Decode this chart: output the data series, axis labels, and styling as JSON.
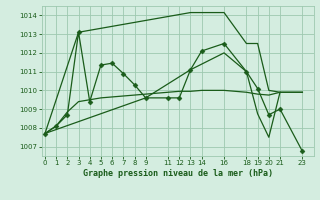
{
  "title": "Graphe pression niveau de la mer (hPa)",
  "bg_color": "#d4ede0",
  "grid_color": "#9ec9b0",
  "line_color": "#1a5c1a",
  "dot_color": "#1a5c1a",
  "ylim": [
    1006.5,
    1014.5
  ],
  "yticks": [
    1007,
    1008,
    1009,
    1010,
    1011,
    1012,
    1013,
    1014
  ],
  "xlim": [
    -0.3,
    24.0
  ],
  "xtick_positions": [
    0,
    1,
    2,
    3,
    4,
    5,
    6,
    7,
    8,
    9,
    11,
    12,
    13,
    14,
    16,
    18,
    19,
    20,
    21,
    23
  ],
  "xtick_labels": [
    "0",
    "1",
    "2",
    "3",
    "4",
    "5",
    "6",
    "7",
    "8",
    "9",
    "11",
    "12",
    "13",
    "14",
    "16",
    "18",
    "19",
    "20",
    "21",
    "23"
  ],
  "series_dotted": [
    [
      0,
      1007.7
    ],
    [
      1,
      1008.1
    ],
    [
      2,
      1008.7
    ],
    [
      3,
      1013.1
    ],
    [
      4,
      1009.4
    ],
    [
      5,
      1011.35
    ],
    [
      6,
      1011.45
    ],
    [
      7,
      1010.9
    ],
    [
      8,
      1010.3
    ],
    [
      9,
      1009.6
    ],
    [
      11,
      1009.6
    ],
    [
      12,
      1009.6
    ],
    [
      13,
      1011.1
    ],
    [
      14,
      1012.1
    ],
    [
      16,
      1012.5
    ],
    [
      18,
      1011.0
    ],
    [
      19,
      1010.1
    ],
    [
      20,
      1008.7
    ],
    [
      21,
      1009.0
    ],
    [
      23,
      1006.75
    ]
  ],
  "series_smooth": [
    [
      0,
      1007.7
    ],
    [
      1,
      1008.1
    ],
    [
      2,
      1008.85
    ],
    [
      3,
      1009.4
    ],
    [
      4,
      1009.5
    ],
    [
      5,
      1009.6
    ],
    [
      6,
      1009.65
    ],
    [
      7,
      1009.7
    ],
    [
      8,
      1009.75
    ],
    [
      9,
      1009.8
    ],
    [
      11,
      1009.9
    ],
    [
      12,
      1009.95
    ],
    [
      13,
      1009.95
    ],
    [
      14,
      1010.0
    ],
    [
      16,
      1010.0
    ],
    [
      18,
      1009.9
    ],
    [
      19,
      1009.8
    ],
    [
      20,
      1009.75
    ],
    [
      21,
      1009.9
    ],
    [
      23,
      1009.9
    ]
  ],
  "series_upper": [
    [
      0,
      1007.7
    ],
    [
      3,
      1013.1
    ],
    [
      13,
      1014.15
    ],
    [
      14,
      1014.15
    ],
    [
      16,
      1014.15
    ],
    [
      18,
      1012.5
    ],
    [
      19,
      1012.5
    ],
    [
      20,
      1010.0
    ],
    [
      21,
      1009.9
    ]
  ],
  "series_lower": [
    [
      0,
      1007.7
    ],
    [
      9,
      1009.6
    ],
    [
      13,
      1011.1
    ],
    [
      16,
      1012.0
    ],
    [
      18,
      1011.0
    ],
    [
      19,
      1008.75
    ],
    [
      20,
      1007.5
    ],
    [
      21,
      1009.9
    ],
    [
      23,
      1009.9
    ]
  ]
}
